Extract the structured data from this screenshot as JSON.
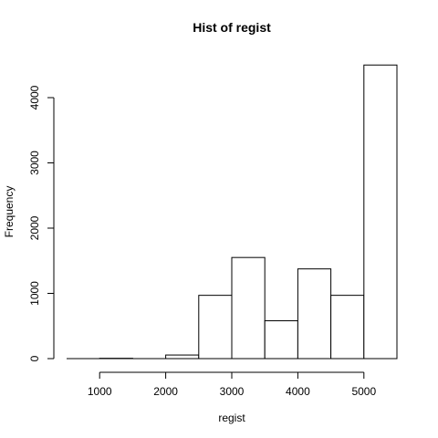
{
  "chart_data": {
    "type": "bar",
    "title": "Hist of regist",
    "xlabel": "regist",
    "ylabel": "Frequency",
    "bins": [
      {
        "start": 500,
        "end": 1000,
        "count": 0
      },
      {
        "start": 1000,
        "end": 1500,
        "count": 5
      },
      {
        "start": 1500,
        "end": 2000,
        "count": 0
      },
      {
        "start": 2000,
        "end": 2500,
        "count": 55
      },
      {
        "start": 2500,
        "end": 3000,
        "count": 970
      },
      {
        "start": 3000,
        "end": 3500,
        "count": 1550
      },
      {
        "start": 3500,
        "end": 4000,
        "count": 580
      },
      {
        "start": 4000,
        "end": 4500,
        "count": 1375
      },
      {
        "start": 4500,
        "end": 5000,
        "count": 970
      },
      {
        "start": 5000,
        "end": 5500,
        "count": 4500
      }
    ],
    "xlim": [
      500,
      5500
    ],
    "ylim": [
      0,
      4500
    ],
    "x_ticks": [
      1000,
      2000,
      3000,
      4000,
      5000
    ],
    "y_ticks": [
      0,
      1000,
      2000,
      3000,
      4000
    ],
    "x_tick_labels": [
      "1000",
      "2000",
      "3000",
      "4000",
      "5000"
    ],
    "y_tick_labels": [
      "0",
      "1000",
      "2000",
      "3000",
      "4000"
    ],
    "grid": false,
    "legend": "none"
  }
}
